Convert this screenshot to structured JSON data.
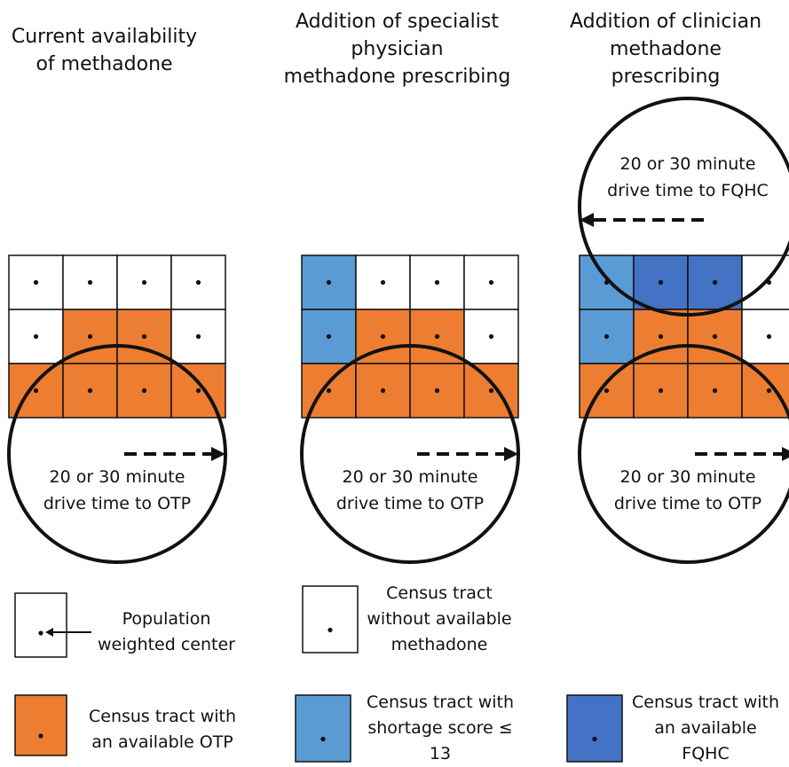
{
  "colors": {
    "otp": "#ED7D31",
    "shortage": "#5B9BD5",
    "fqhc": "#4472C4",
    "white": "#FFFFFF",
    "line": "#111111"
  },
  "panels": [
    {
      "title": "Current availability\nof methadone",
      "otp_circle_label": [
        "20 or 30 minute",
        "drive time to OTP"
      ],
      "grid": [
        [
          "white",
          "white",
          "white",
          "white"
        ],
        [
          "white",
          "otp",
          "otp",
          "white"
        ],
        [
          "otp",
          "otp",
          "otp",
          "otp"
        ]
      ]
    },
    {
      "title": "Addition of specialist\nphysician\nmethadone prescribing",
      "otp_circle_label": [
        "20 or 30 minute",
        "drive time to OTP"
      ],
      "grid": [
        [
          "shortage",
          "white",
          "white",
          "white"
        ],
        [
          "shortage",
          "otp",
          "otp",
          "white"
        ],
        [
          "otp",
          "otp",
          "otp",
          "otp"
        ]
      ]
    },
    {
      "title": "Addition of clinician\nmethadone\nprescribing",
      "otp_circle_label": [
        "20 or 30 minute",
        "drive time to OTP"
      ],
      "fqhc_circle_label": [
        "20 or 30 minute",
        "drive time to FQHC"
      ],
      "grid": [
        [
          "shortage",
          "fqhc",
          "fqhc",
          "white"
        ],
        [
          "shortage",
          "otp",
          "otp",
          "white"
        ],
        [
          "otp",
          "otp",
          "otp",
          "otp"
        ]
      ]
    }
  ],
  "legend": [
    {
      "key": "white",
      "text": "Population\nweighted center",
      "pointer_arrow": true
    },
    {
      "key": "white",
      "text": "Census tract\nwithout available\nmethadone"
    },
    {
      "key": "otp",
      "text": "Census tract with\nan available OTP"
    },
    {
      "key": "shortage",
      "text": "Census tract with\nshortage score ≤\n13"
    },
    {
      "key": "fqhc",
      "text": "Census tract with\nan available\nFQHC"
    }
  ]
}
